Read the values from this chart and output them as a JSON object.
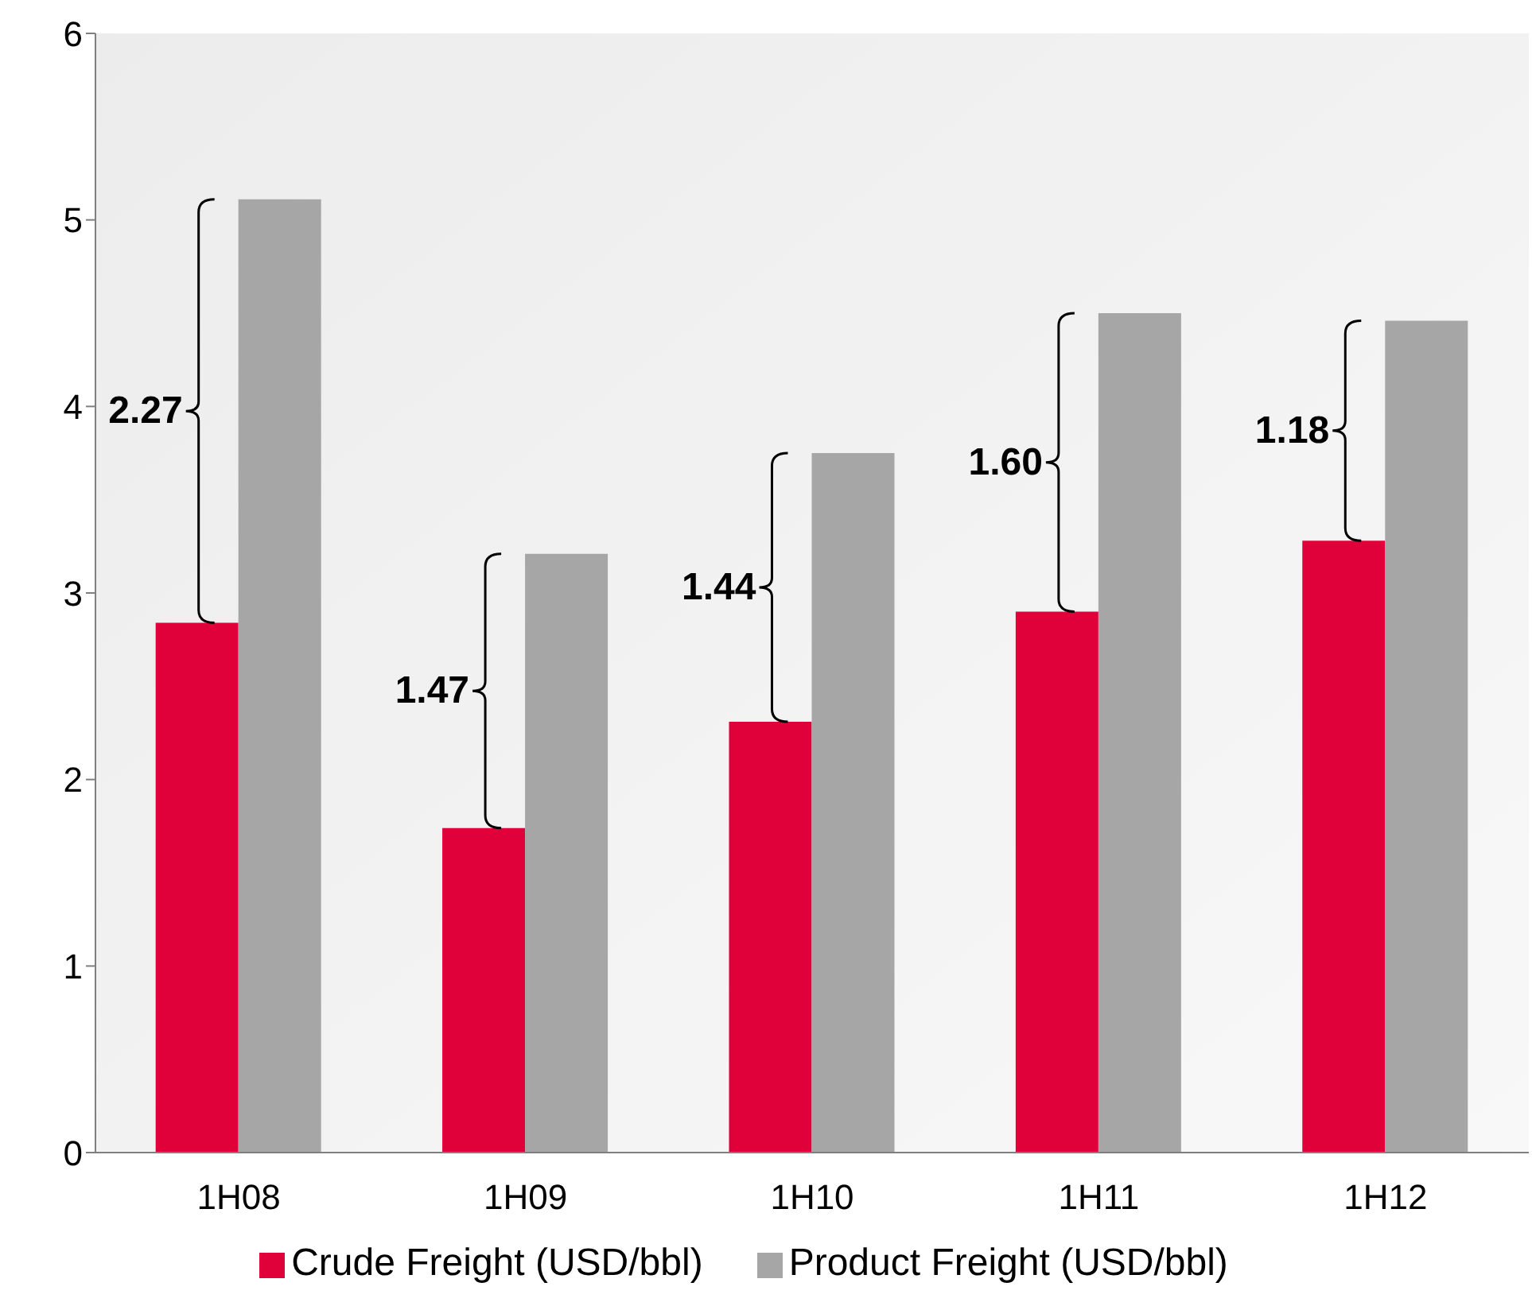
{
  "chart_data": {
    "type": "bar",
    "categories": [
      "1H08",
      "1H09",
      "1H10",
      "1H11",
      "1H12"
    ],
    "series": [
      {
        "name": "Crude Freight (USD/bbl)",
        "color": "#e0003a",
        "values": [
          2.84,
          1.74,
          2.31,
          2.9,
          3.28
        ]
      },
      {
        "name": "Product Freight (USD/bbl)",
        "color": "#a6a6a6",
        "values": [
          5.11,
          3.21,
          3.75,
          4.5,
          4.46
        ]
      }
    ],
    "ylim": [
      0,
      6
    ],
    "yticks": [
      0,
      1,
      2,
      3,
      4,
      5,
      6
    ],
    "grid": false,
    "legend": "bottom",
    "annotations": [
      {
        "text": "2.27",
        "x": "1H08",
        "y": 3.975
      },
      {
        "text": "1.47",
        "x": "1H09",
        "y": 2.475
      },
      {
        "text": "1.44",
        "x": "1H10",
        "y": 3.03
      },
      {
        "text": "1.60",
        "x": "1H11",
        "y": 3.7
      },
      {
        "text": "1.18",
        "x": "1H12",
        "y": 3.87
      }
    ]
  }
}
